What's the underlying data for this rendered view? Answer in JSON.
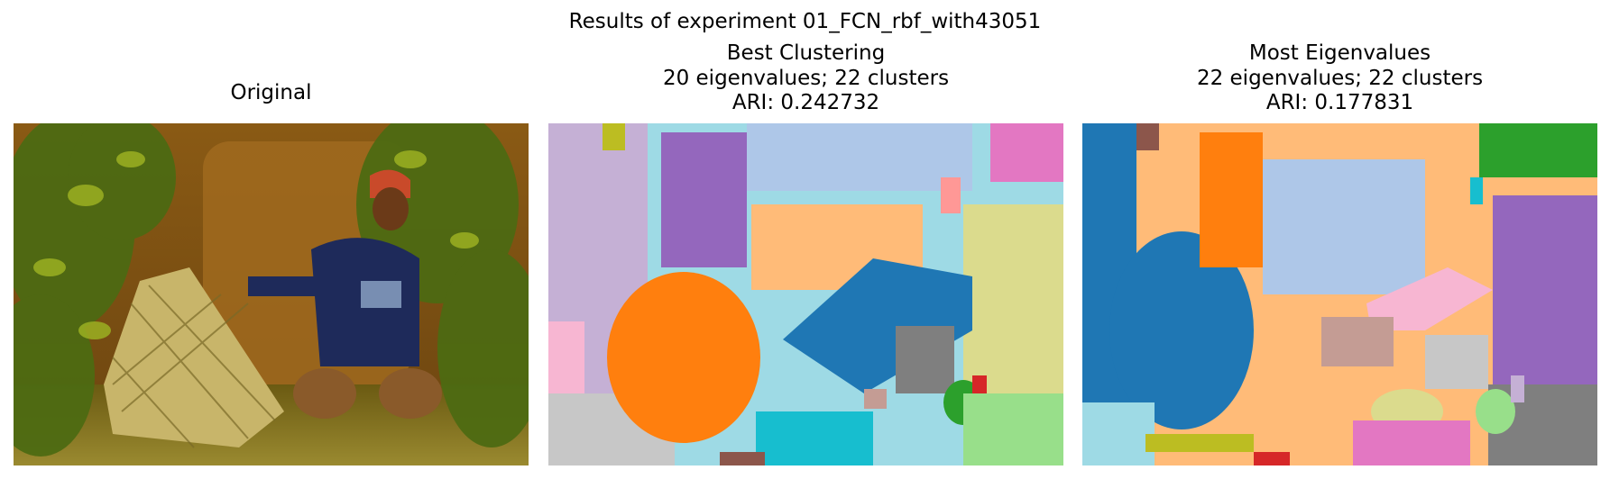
{
  "figure": {
    "suptitle": "Results of experiment 01_FCN_rbf_with43051",
    "panels": [
      {
        "title_lines": [
          "Original"
        ]
      },
      {
        "title_lines": [
          "Best Clustering",
          "20 eigenvalues; 22 clusters",
          "ARI: 0.242732"
        ]
      },
      {
        "title_lines": [
          "Most Eigenvalues",
          "22 eigenvalues; 22 clusters",
          "ARI: 0.177831"
        ]
      }
    ]
  },
  "colors": {
    "tab_blue": "#1f77b4",
    "tab_blue_light": "#aec7e8",
    "tab_orange": "#ff7f0e",
    "tab_orange_light": "#ffbb78",
    "tab_green": "#2ca02c",
    "tab_green_light": "#98df8a",
    "tab_red": "#d62728",
    "tab_red_light": "#ff9896",
    "tab_purple": "#9467bd",
    "tab_purple_light": "#c5b0d5",
    "tab_brown": "#8c564b",
    "tab_brown_light": "#c49c94",
    "tab_pink": "#e377c2",
    "tab_pink_light": "#f7b6d2",
    "tab_gray": "#7f7f7f",
    "tab_gray_light": "#c7c7c7",
    "tab_olive": "#bcbd22",
    "tab_olive_light": "#dbdb8d",
    "tab_cyan": "#17becf",
    "tab_cyan_light": "#9edae5"
  }
}
